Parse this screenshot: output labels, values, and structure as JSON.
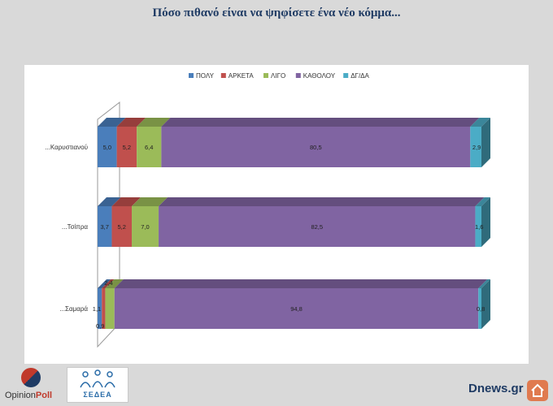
{
  "header": {
    "title": "Πόσο πιθανό είναι να ψηφίσετε ένα νέο κόμμα..."
  },
  "chart_data": {
    "type": "bar",
    "orientation": "horizontal",
    "stacked": true,
    "three_d": true,
    "categories": [
      "...Καρυστιανού",
      "...Τσίπρα",
      "...Σαμαρά"
    ],
    "series": [
      {
        "name": "ΠΟΛΥ",
        "color": "#4a7ebb",
        "values": [
          5.0,
          3.7,
          1.1
        ]
      },
      {
        "name": "ΑΡΚΕΤΑ",
        "color": "#c0504d",
        "values": [
          5.2,
          5.2,
          0.9
        ]
      },
      {
        "name": "ΛΙΓΟ",
        "color": "#9bbb59",
        "values": [
          6.4,
          7.0,
          2.4
        ]
      },
      {
        "name": "ΚΑΘΟΛΟΥ",
        "color": "#8064a2",
        "values": [
          80.5,
          82.5,
          94.8
        ]
      },
      {
        "name": "ΔΓ/ΔΑ",
        "color": "#4bacc6",
        "values": [
          2.9,
          1.6,
          0.8
        ]
      }
    ],
    "data_labels": [
      [
        "5,0",
        "5,2",
        "6,4",
        "80,5",
        "2,9"
      ],
      [
        "3,7",
        "5,2",
        "7,0",
        "82,5",
        "1,6"
      ],
      [
        "1,1",
        "0,9",
        "2,4",
        "94,8",
        "0,8"
      ]
    ],
    "legend_position": "top",
    "xlim": [
      0,
      100
    ],
    "grid": false
  },
  "footer": {
    "opinion_poll": {
      "part1": "Opinion",
      "part2": "Poll"
    },
    "sedea": "ΣΕΔΕΑ",
    "source": "Dnews.gr"
  },
  "colors": {
    "title": "#1f3b64",
    "background": "#d9d9d9",
    "panel": "#ffffff",
    "home_button": "#e07a4f"
  }
}
